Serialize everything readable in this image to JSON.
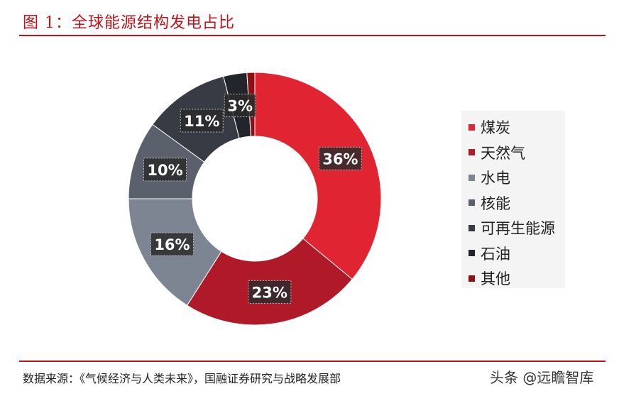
{
  "header": {
    "title": "图 1：全球能源结构发电占比"
  },
  "footer": {
    "source": "数据来源：《气候经济与人类未来》，国融证券研究与战略发展部"
  },
  "watermark": {
    "text": "头条 @远瞻智库"
  },
  "chart_data": {
    "type": "pie",
    "donut": true,
    "title": "",
    "slices": [
      {
        "label": "煤炭",
        "value": 36,
        "display": "36%",
        "color": "#e02431"
      },
      {
        "label": "天然气",
        "value": 23,
        "display": "23%",
        "color": "#b01a28"
      },
      {
        "label": "水电",
        "value": 16,
        "display": "16%",
        "color": "#7d8593"
      },
      {
        "label": "核能",
        "value": 10,
        "display": "10%",
        "color": "#5a616d"
      },
      {
        "label": "可再生能源",
        "value": 11,
        "display": "11%",
        "color": "#363b44"
      },
      {
        "label": "石油",
        "value": 3,
        "display": "3%",
        "color": "#22262c"
      },
      {
        "label": "其他",
        "value": 1,
        "display": "",
        "color": "#8c1016"
      }
    ],
    "legend_position": "right"
  }
}
